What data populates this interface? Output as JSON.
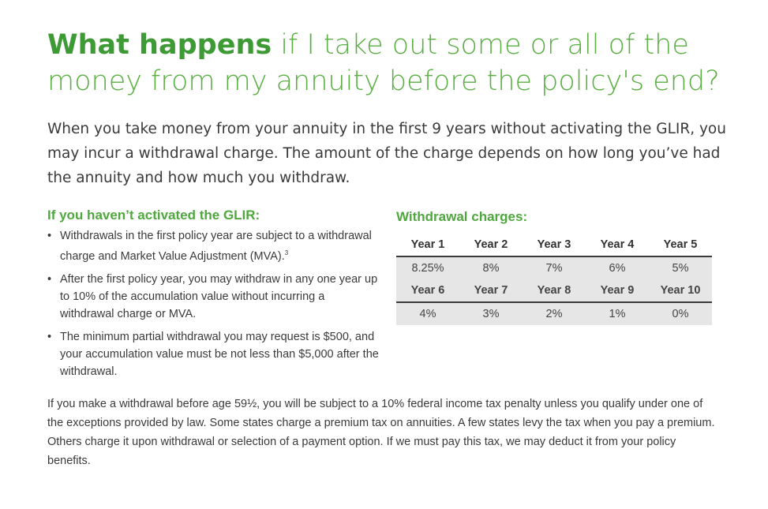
{
  "title": {
    "bold_part": "What happens",
    "rest_line1": " if I take out some or all of the",
    "line2": "money from my annuity before the policy's end?"
  },
  "intro": "When you take money from your annuity in the first 9 years without activating the GLIR, you may incur a withdrawal charge. The amount of the charge depends on how long you’ve had the annuity and how much you withdraw.",
  "left": {
    "heading": "If you haven’t activated the GLIR:",
    "bullets": {
      "b1": "Withdrawals in the first policy year are subject to a withdrawal charge and Market Value Adjustment (MVA).",
      "b1_sup": "3",
      "b2": "After the first policy year, you may withdraw in any one year up to 10% of the accumulation value without incurring a withdrawal charge or MVA.",
      "b3": "The minimum partial withdrawal you may request is $500, and your accumulation value must be not less than $5,000 after the withdrawal."
    }
  },
  "withdrawal_charges": {
    "heading": "Withdrawal charges:",
    "row1_years": [
      "Year 1",
      "Year 2",
      "Year 3",
      "Year 4",
      "Year 5"
    ],
    "row1_values": [
      "8.25%",
      "8%",
      "7%",
      "6%",
      "5%"
    ],
    "row2_years": [
      "Year 6",
      "Year 7",
      "Year 8",
      "Year 9",
      "Year 10"
    ],
    "row2_values": [
      "4%",
      "3%",
      "2%",
      "1%",
      "0%"
    ]
  },
  "footer": "If you make a withdrawal before age 59½, you will be subject to a 10% federal income tax penalty unless you qualify under one of the exceptions provided by law. Some states charge a premium tax on annuities. A few states levy the tax when you pay a premium. Others charge it upon withdrawal or selection of a payment option. If we must pay this tax, we may deduct it from your policy benefits.",
  "colors": {
    "green_title": "#5aaf43",
    "green_bold": "#3e9a35",
    "green_heading": "#4ea83d",
    "table_shade": "#e6e6e6"
  }
}
